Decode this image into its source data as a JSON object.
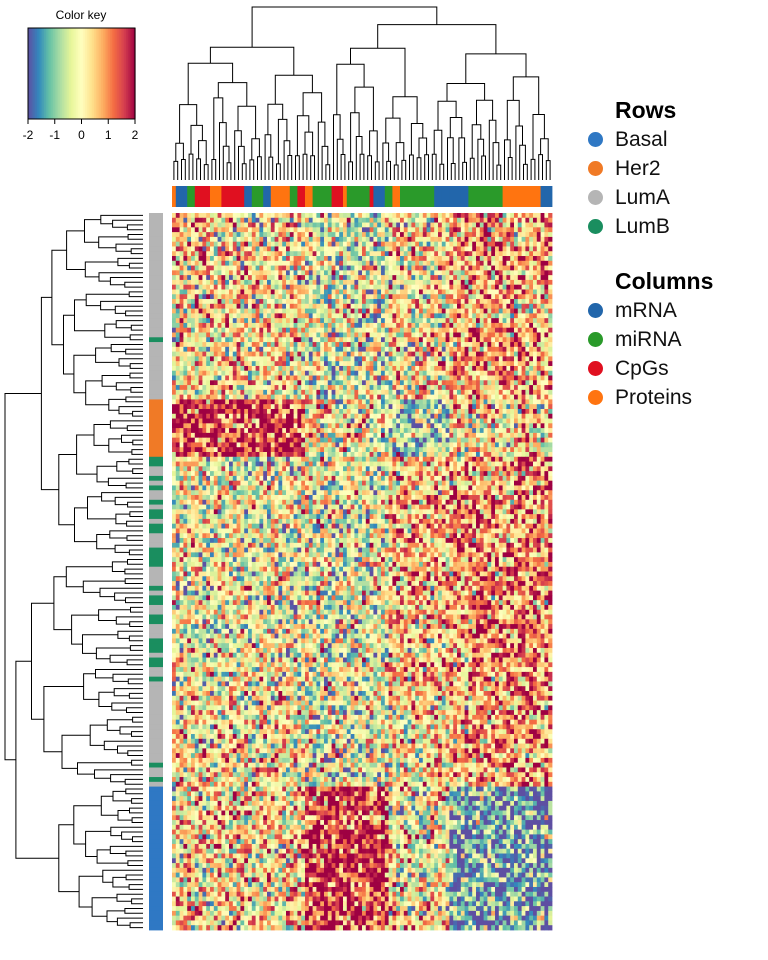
{
  "chart_data": {
    "type": "heatmap",
    "title": "",
    "color_key": {
      "title": "Color key",
      "ticks": [
        "-2",
        "-1",
        "0",
        "1",
        "2"
      ],
      "range": [
        -2,
        2
      ],
      "palette": [
        "#5e4fa2",
        "#3288bd",
        "#66c2a5",
        "#abdda4",
        "#e6f598",
        "#ffffbf",
        "#fee08b",
        "#fdae61",
        "#f46d43",
        "#d53e4f",
        "#9e0142"
      ]
    },
    "n_rows": 150,
    "n_cols": 100,
    "row_blocks": [
      {
        "group": "LumA",
        "fraction": 0.26
      },
      {
        "group": "Her2",
        "fraction": 0.08
      },
      {
        "group": "LumB",
        "fraction": 0.32
      },
      {
        "group": "LumA",
        "fraction": 0.14
      },
      {
        "group": "Basal",
        "fraction": 0.2
      }
    ],
    "column_blocks": [
      {
        "type": "CpGs",
        "fraction": 0.35
      },
      {
        "type": "mRNA",
        "fraction": 0.22
      },
      {
        "type": "Proteins",
        "fraction": 0.16
      },
      {
        "type": "miRNA",
        "fraction": 0.27
      }
    ],
    "legend_rows": {
      "title": "Rows",
      "items": [
        {
          "label": "Basal",
          "color": "#2f78c4"
        },
        {
          "label": "Her2",
          "color": "#f07a26"
        },
        {
          "label": "LumA",
          "color": "#b5b5b5"
        },
        {
          "label": "LumB",
          "color": "#1a8e5f"
        }
      ]
    },
    "legend_columns": {
      "title": "Columns",
      "items": [
        {
          "label": "mRNA",
          "color": "#2266ab"
        },
        {
          "label": "miRNA",
          "color": "#2a9a2a"
        },
        {
          "label": "CpGs",
          "color": "#e01020"
        },
        {
          "label": "Proteins",
          "color": "#ff7410"
        }
      ]
    }
  }
}
